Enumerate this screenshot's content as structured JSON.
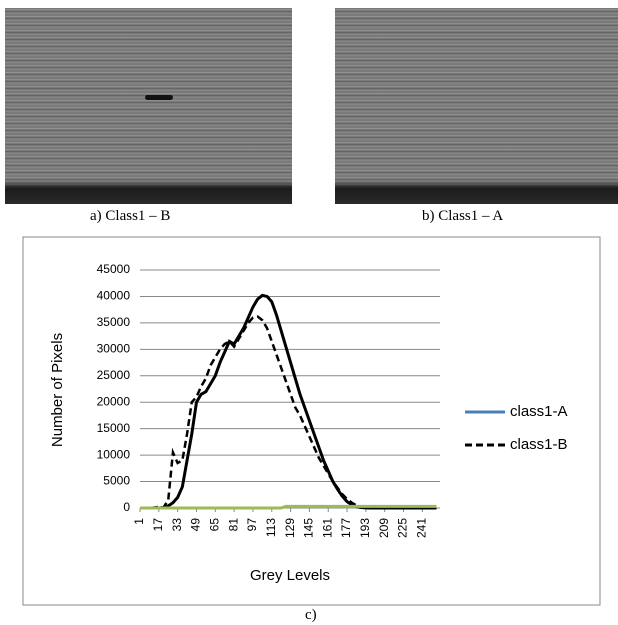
{
  "captions": {
    "a": "a) Class1 – B",
    "b": "b) Class1 – A",
    "c": "c)"
  },
  "chart_data": {
    "type": "line",
    "xlabel": "Grey Levels",
    "ylabel": "Number of Pixels",
    "x": [
      1,
      5,
      9,
      13,
      17,
      21,
      25,
      29,
      33,
      37,
      41,
      45,
      49,
      53,
      57,
      61,
      65,
      69,
      73,
      77,
      81,
      85,
      89,
      93,
      97,
      101,
      105,
      109,
      113,
      117,
      121,
      125,
      129,
      133,
      137,
      141,
      145,
      149,
      153,
      157,
      161,
      165,
      169,
      173,
      177,
      181,
      185,
      189,
      193,
      197,
      201,
      205,
      209,
      213,
      217,
      221,
      225,
      229,
      233,
      237,
      241,
      245,
      249,
      253
    ],
    "xlim": [
      1,
      256
    ],
    "xticks": [
      1,
      17,
      33,
      49,
      65,
      81,
      97,
      113,
      129,
      145,
      161,
      177,
      193,
      209,
      225,
      241
    ],
    "ylim": [
      0,
      45000
    ],
    "yticks": [
      0,
      5000,
      10000,
      15000,
      20000,
      25000,
      30000,
      35000,
      40000,
      45000
    ],
    "grid": true,
    "series": [
      {
        "name": "class1-A",
        "color": "#000000",
        "legend_color": "#4a7ebb",
        "dash": false,
        "values": [
          0,
          0,
          0,
          0,
          0,
          100,
          400,
          1000,
          2000,
          4000,
          9000,
          14000,
          20000,
          21500,
          22000,
          23500,
          25000,
          27500,
          29500,
          31500,
          31000,
          32500,
          34000,
          36000,
          38000,
          39500,
          40200,
          40000,
          39000,
          36500,
          33500,
          30500,
          27500,
          24500,
          21500,
          19000,
          16500,
          14000,
          11500,
          9000,
          7000,
          5000,
          3500,
          2200,
          1200,
          600,
          250,
          100,
          30,
          0,
          0,
          0,
          0,
          0,
          0,
          0,
          0,
          0,
          0,
          0,
          0,
          0,
          0,
          0
        ]
      },
      {
        "name": "class1-B",
        "color": "#000000",
        "dash": true,
        "values": [
          0,
          0,
          0,
          100,
          200,
          100,
          1500,
          10500,
          8500,
          9000,
          14000,
          20000,
          21000,
          23000,
          24500,
          27000,
          28500,
          30000,
          31000,
          31500,
          30500,
          32000,
          33500,
          35000,
          36000,
          36200,
          35500,
          34000,
          31500,
          29000,
          26500,
          24000,
          21500,
          19000,
          17500,
          15500,
          13500,
          11500,
          9500,
          8000,
          6500,
          5000,
          3800,
          2600,
          1700,
          1000,
          500,
          200,
          80,
          0,
          0,
          0,
          0,
          0,
          0,
          0,
          0,
          0,
          0,
          0,
          0,
          0,
          0,
          0
        ]
      },
      {
        "color": "#9bbb59",
        "dash": false,
        "values": [
          0,
          0,
          0,
          0,
          0,
          0,
          0,
          0,
          0,
          0,
          0,
          0,
          0,
          0,
          0,
          0,
          0,
          0,
          0,
          0,
          0,
          0,
          0,
          0,
          0,
          0,
          0,
          0,
          0,
          0,
          0,
          300,
          300,
          300,
          300,
          300,
          300,
          300,
          300,
          300,
          300,
          300,
          300,
          300,
          300,
          300,
          300,
          300,
          300,
          300,
          300,
          300,
          300,
          300,
          300,
          300,
          300,
          300,
          300,
          300,
          300,
          300,
          300,
          300
        ]
      }
    ]
  }
}
